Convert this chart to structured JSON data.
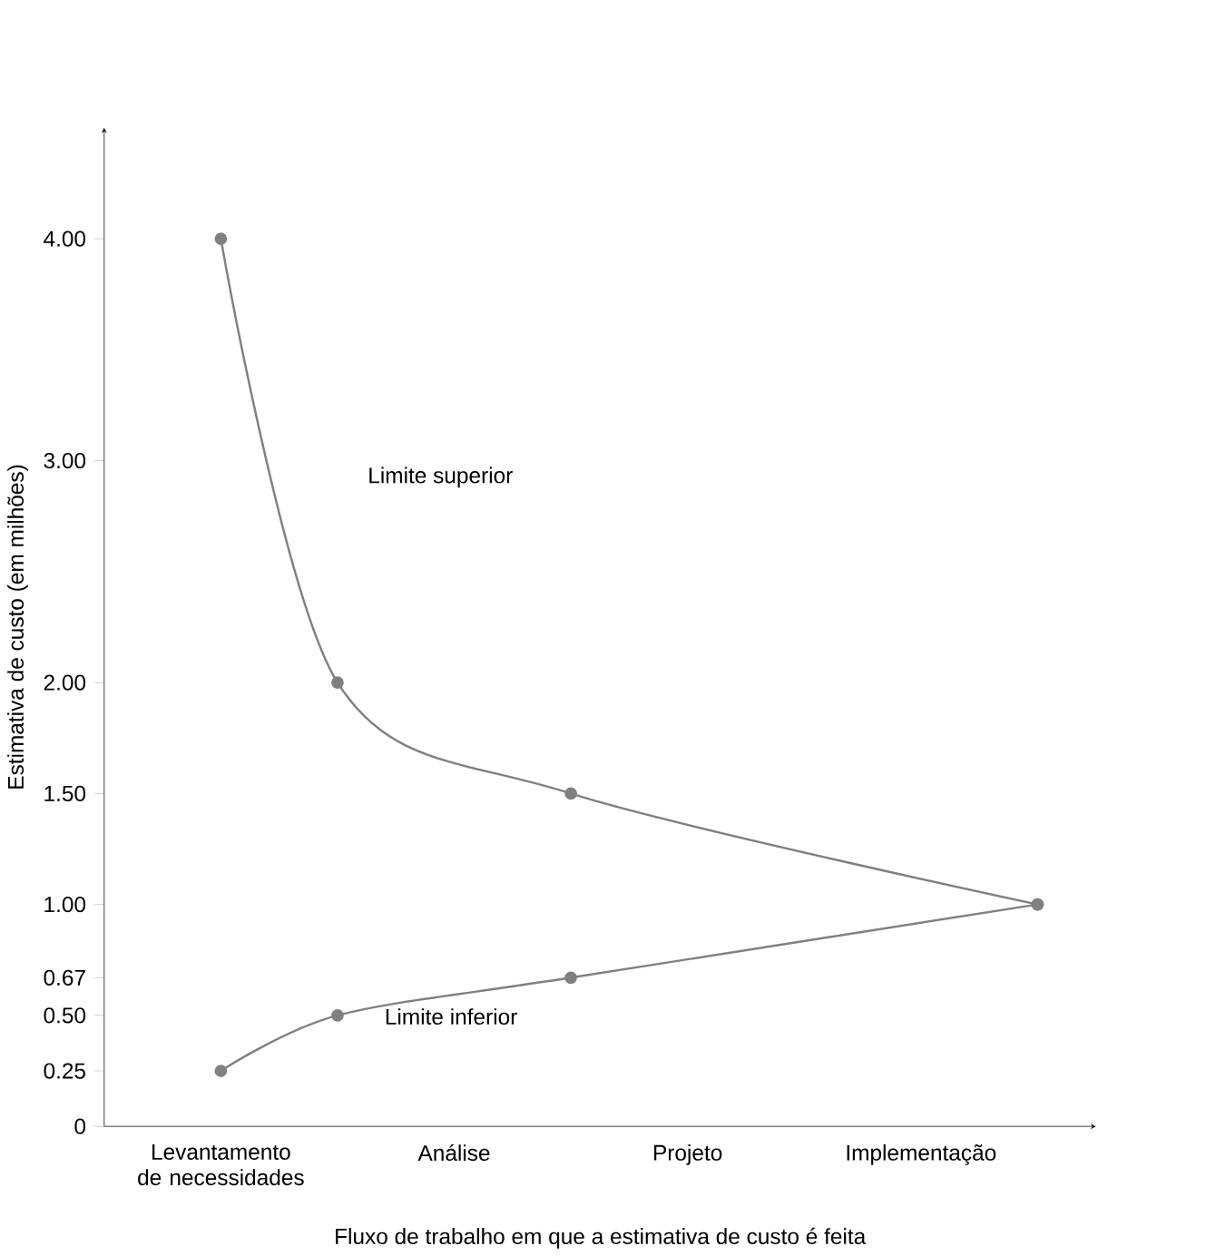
{
  "chart_data": {
    "type": "line",
    "xlabel": "Fluxo de trabalho em que a estimativa de custo é feita",
    "ylabel": "Estimativa de custo (em milhões)",
    "categories": [
      "Levantamento de necessidades",
      null,
      "Análise",
      null,
      "Projeto",
      null,
      "Implementação",
      null
    ],
    "series": [
      {
        "color": "#808080",
        "values": [
          4,
          2,
          null,
          1.5,
          null,
          null,
          null,
          1
        ]
      },
      {
        "color": "#808080",
        "values": [
          0.25,
          0.5,
          null,
          0.67,
          null,
          null,
          null,
          1
        ]
      }
    ],
    "ylim": [
      0,
      4.5
    ],
    "yticks": [
      0,
      0.25,
      {
        "value": 0.5,
        "label": "0.50"
      },
      0.67,
      {
        "value": 1,
        "label": "1.00"
      },
      {
        "value": 1.5,
        "label": "1.50"
      },
      {
        "value": 2,
        "label": "2.00"
      },
      {
        "value": 3,
        "label": "3.00"
      },
      {
        "value": 4,
        "label": "4.00"
      }
    ],
    "annotations": [
      "Limite superior",
      "Limite inferior"
    ],
    "marker": "circle",
    "line_style": "solid",
    "grid": false
  }
}
